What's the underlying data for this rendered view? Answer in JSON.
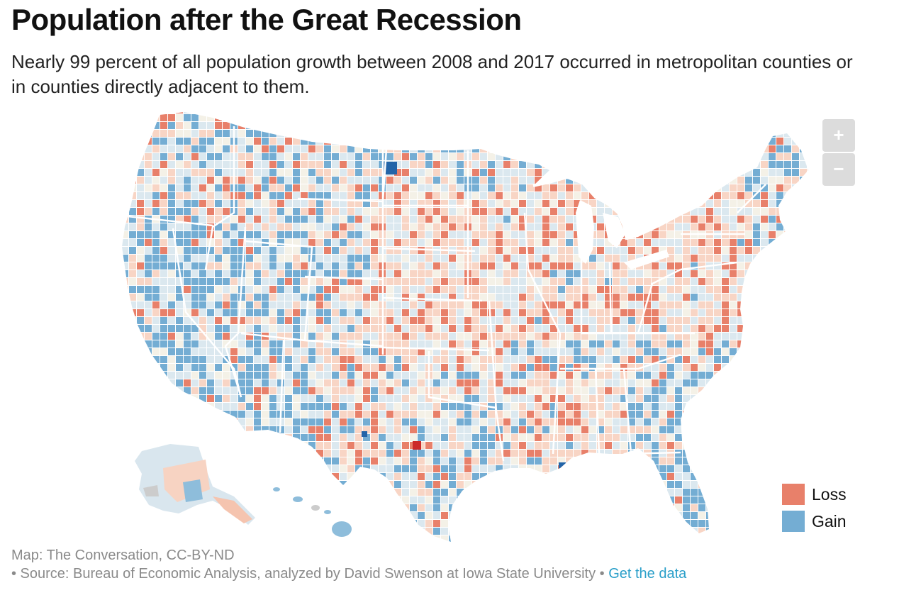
{
  "title": "Population after the Great Recession",
  "subtitle": "Nearly 99 percent of all population growth between 2008 and 2017 occurred in metropolitan counties or in counties directly adjacent to them.",
  "map": {
    "type": "choropleth",
    "region": "United States counties",
    "colors": {
      "loss_strong": "#e8806a",
      "loss_light": "#f8d5c5",
      "neutral": "#f4f1e7",
      "gain_light": "#dbe8ef",
      "gain_strong": "#74add3",
      "gain_extreme": "#2364a8",
      "loss_extreme": "#cc2a2a",
      "no_data": "#cccccc"
    }
  },
  "zoom": {
    "in_label": "+",
    "out_label": "−"
  },
  "legend": {
    "items": [
      {
        "label": "Loss",
        "color": "#e8806a"
      },
      {
        "label": "Gain",
        "color": "#74add3"
      }
    ]
  },
  "footer": {
    "credit": "Map: The Conversation, CC-BY-ND",
    "source_prefix": "• Source: Bureau of Economic Analysis, analyzed by David Swenson at Iowa State University •",
    "link_text": "Get the data"
  }
}
